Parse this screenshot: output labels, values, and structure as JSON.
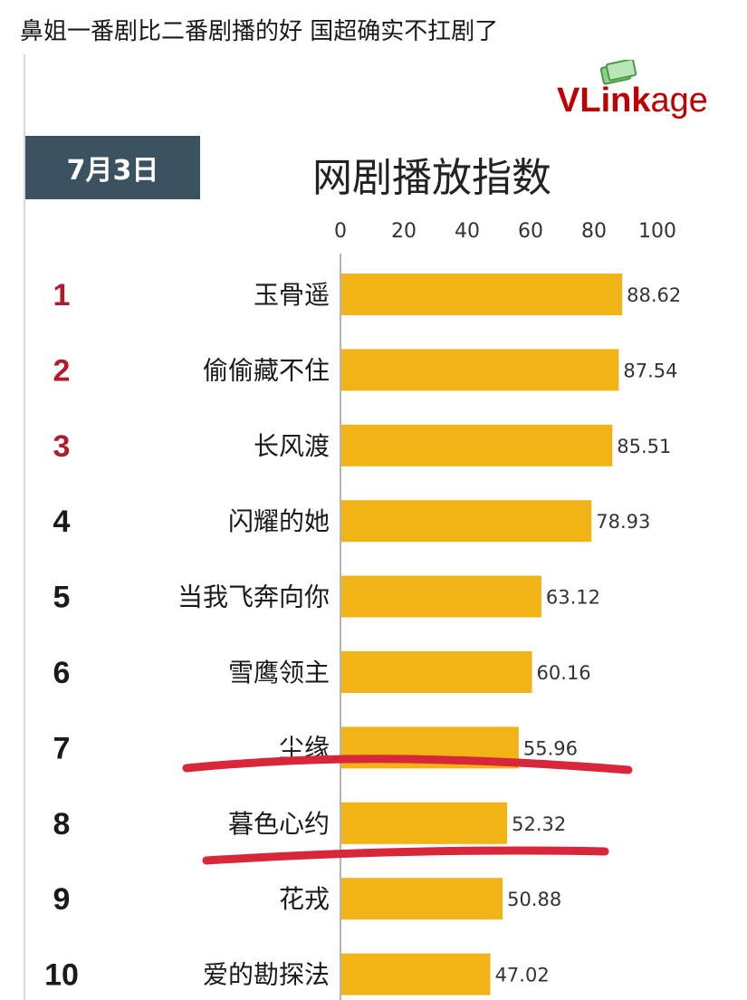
{
  "caption": "鼻姐一番剧比二番剧播的好 国超确实不扛剧了",
  "logo": {
    "v": "V",
    "l": "L",
    "ink": "ink",
    "age": "age"
  },
  "date_label": "7月3日",
  "colors": {
    "bar": "#f2b316",
    "rank_top3": "#b01c2e",
    "rank_other": "#1a1a1a",
    "date_box": "#3b5360",
    "annotation": "#d8273a"
  },
  "chart_data": {
    "type": "bar",
    "orientation": "horizontal",
    "title": "网剧播放指数",
    "xlim": [
      0,
      100
    ],
    "x_ticks": [
      "0",
      "20",
      "40",
      "60",
      "80",
      "100"
    ],
    "ranks": [
      "1",
      "2",
      "3",
      "4",
      "5",
      "6",
      "7",
      "8",
      "9",
      "10"
    ],
    "categories": [
      "玉骨遥",
      "偷偷藏不住",
      "长风渡",
      "闪耀的她",
      "当我飞奔向你",
      "雪鹰领主",
      "尘缘",
      "暮色心约",
      "花戎",
      "爱的勘探法"
    ],
    "values": [
      88.62,
      87.54,
      85.51,
      78.93,
      63.12,
      60.16,
      55.96,
      52.32,
      50.88,
      47.02
    ],
    "value_labels": [
      "88.62",
      "87.54",
      "85.51",
      "78.93",
      "63.12",
      "60.16",
      "55.96",
      "52.32",
      "50.88",
      "47.02"
    ],
    "annotations": [
      "red underline under 尘缘",
      "red underline under 暮色心约"
    ]
  }
}
